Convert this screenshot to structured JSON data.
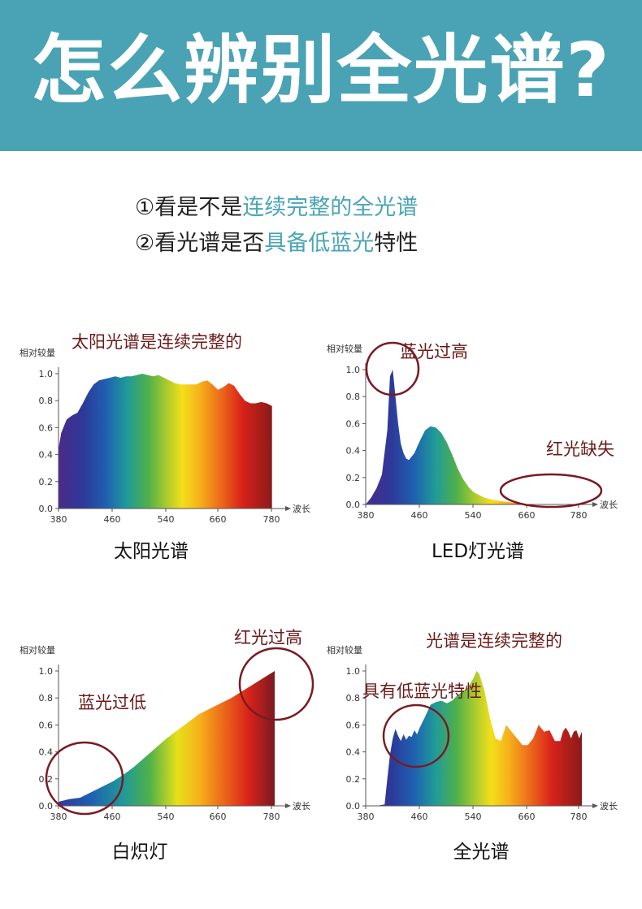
{
  "header": {
    "title": "怎么辨别全光谱?"
  },
  "intro": {
    "line1": {
      "prefix": "①看是不是",
      "highlight": "连续完整的全光谱",
      "suffix": ""
    },
    "line2": {
      "prefix": "②看光谱是否",
      "highlight": "具备低蓝光",
      "suffix": "特性"
    }
  },
  "colors": {
    "header_bg": "#49a3b4",
    "highlight": "#4aa5b6",
    "annotation": "#6b1a1a",
    "circle": "#7a1a22"
  },
  "chart_data": [
    {
      "type": "area",
      "title": "太阳光谱",
      "ylabel": "相对较量",
      "xlabel": "波长",
      "xlim": [
        380,
        780
      ],
      "ylim": [
        0,
        1.0
      ],
      "xticks": [
        "380",
        "460",
        "540",
        "660",
        "780"
      ],
      "yticks": [
        "0.0",
        "0.2",
        "0.4",
        "0.6",
        "0.8",
        "1.0"
      ],
      "annotations": [
        "太阳光谱是连续完整的"
      ],
      "series": [
        {
          "x": [
            380,
            385,
            395,
            405,
            415,
            425,
            435,
            445,
            455,
            465,
            475,
            485,
            495,
            505,
            515,
            525,
            535,
            545,
            555,
            565,
            575,
            585,
            595,
            605,
            615,
            625,
            635,
            645,
            655,
            665,
            675,
            685,
            695,
            705,
            715,
            725,
            735,
            745,
            755,
            765,
            775
          ],
          "y": [
            0.44,
            0.56,
            0.66,
            0.69,
            0.71,
            0.78,
            0.86,
            0.92,
            0.95,
            0.96,
            0.97,
            0.98,
            0.97,
            0.98,
            0.98,
            0.99,
            1.0,
            0.99,
            0.98,
            0.99,
            0.97,
            0.95,
            0.93,
            0.92,
            0.92,
            0.92,
            0.92,
            0.94,
            0.95,
            0.92,
            0.88,
            0.9,
            0.93,
            0.91,
            0.85,
            0.8,
            0.78,
            0.78,
            0.79,
            0.78,
            0.76
          ]
        }
      ]
    },
    {
      "type": "area",
      "title": "LED灯光谱",
      "ylabel": "相对较量",
      "xlabel": "波长",
      "xlim": [
        380,
        780
      ],
      "ylim": [
        0,
        1.0
      ],
      "xticks": [
        "380",
        "460",
        "540",
        "660",
        "780"
      ],
      "yticks": [
        "0.0",
        "0.2",
        "0.4",
        "0.6",
        "0.8",
        "1.0"
      ],
      "annotations": [
        "蓝光过高",
        "红光缺失"
      ],
      "series": [
        {
          "x": [
            380,
            390,
            400,
            410,
            420,
            425,
            430,
            435,
            440,
            445,
            450,
            455,
            460,
            470,
            480,
            490,
            500,
            510,
            520,
            530,
            540,
            550,
            560,
            570,
            580,
            590,
            600,
            620,
            640,
            660,
            680,
            700,
            720,
            740,
            760,
            780
          ],
          "y": [
            0.0,
            0.05,
            0.12,
            0.22,
            0.55,
            0.95,
            1.0,
            0.8,
            0.6,
            0.45,
            0.38,
            0.34,
            0.33,
            0.38,
            0.47,
            0.55,
            0.58,
            0.57,
            0.53,
            0.46,
            0.37,
            0.27,
            0.19,
            0.13,
            0.09,
            0.07,
            0.05,
            0.03,
            0.02,
            0.01,
            0.0,
            0.0,
            0.0,
            0.0,
            0.0,
            0.0
          ]
        }
      ]
    },
    {
      "type": "area",
      "title": "白炽灯",
      "ylabel": "相对较量",
      "xlabel": "波长",
      "xlim": [
        380,
        780
      ],
      "ylim": [
        0,
        1.0
      ],
      "xticks": [
        "380",
        "460",
        "540",
        "660",
        "780"
      ],
      "yticks": [
        "0.0",
        "0.2",
        "0.4",
        "0.6",
        "0.8",
        "1.0"
      ],
      "annotations": [
        "红光过高",
        "蓝光过低"
      ],
      "series": [
        {
          "x": [
            380,
            400,
            420,
            440,
            460,
            480,
            500,
            520,
            540,
            560,
            580,
            600,
            620,
            640,
            660,
            680,
            700,
            720,
            740,
            760,
            780
          ],
          "y": [
            0.03,
            0.05,
            0.06,
            0.1,
            0.14,
            0.18,
            0.23,
            0.29,
            0.36,
            0.43,
            0.5,
            0.56,
            0.62,
            0.68,
            0.72,
            0.76,
            0.8,
            0.85,
            0.9,
            0.95,
            1.0
          ]
        }
      ]
    },
    {
      "type": "area",
      "title": "全光谱",
      "ylabel": "相对较量",
      "xlabel": "波长",
      "xlim": [
        380,
        780
      ],
      "ylim": [
        0,
        1.0
      ],
      "xticks": [
        "380",
        "460",
        "540",
        "660",
        "780"
      ],
      "yticks": [
        "0.0",
        "0.2",
        "0.4",
        "0.6",
        "0.8",
        "1.0"
      ],
      "annotations": [
        "光谱是连续完整的",
        "具有低蓝光特性"
      ],
      "series": [
        {
          "x": [
            380,
            400,
            415,
            420,
            425,
            430,
            435,
            440,
            445,
            450,
            455,
            460,
            465,
            470,
            475,
            480,
            490,
            500,
            510,
            520,
            530,
            540,
            550,
            560,
            570,
            580,
            585,
            590,
            600,
            610,
            620,
            630,
            640,
            650,
            660,
            670,
            680,
            690,
            700,
            710,
            720,
            730,
            740,
            745,
            750,
            755,
            760,
            765,
            770,
            775,
            780
          ],
          "y": [
            0.0,
            0.0,
            0.01,
            0.2,
            0.38,
            0.5,
            0.57,
            0.52,
            0.48,
            0.53,
            0.49,
            0.52,
            0.51,
            0.56,
            0.53,
            0.58,
            0.66,
            0.75,
            0.77,
            0.78,
            0.76,
            0.78,
            0.82,
            0.85,
            0.88,
            0.95,
            1.0,
            0.98,
            0.85,
            0.65,
            0.5,
            0.48,
            0.6,
            0.55,
            0.5,
            0.45,
            0.45,
            0.5,
            0.6,
            0.55,
            0.56,
            0.48,
            0.48,
            0.55,
            0.58,
            0.55,
            0.5,
            0.55,
            0.56,
            0.5,
            0.55
          ]
        }
      ]
    }
  ],
  "labels": {
    "wave": "波长"
  }
}
